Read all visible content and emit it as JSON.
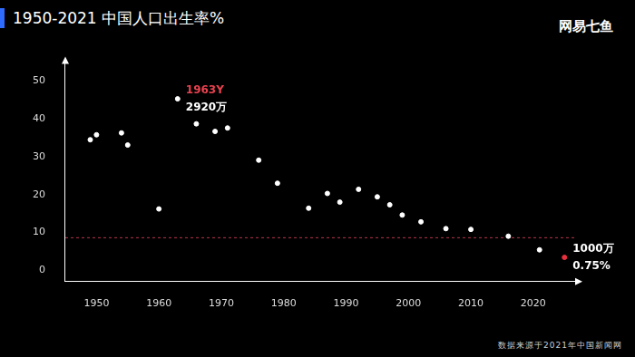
{
  "chart_data": {
    "type": "scatter",
    "title": "1950-2021 中国人口出生率%",
    "logo": "网易七鱼",
    "source": "数据来源于2021年中国新闻网",
    "x": [
      1949,
      1950,
      1954,
      1955,
      1960,
      1963,
      1966,
      1969,
      1971,
      1976,
      1979,
      1984,
      1987,
      1989,
      1992,
      1995,
      1997,
      1999,
      2002,
      2006,
      2010,
      2016,
      2021,
      2025
    ],
    "values": [
      34.5,
      35.8,
      36.3,
      33.1,
      16.2,
      45.3,
      38.7,
      36.7,
      37.6,
      29.1,
      23.0,
      16.4,
      20.3,
      18.0,
      21.4,
      19.4,
      17.3,
      14.6,
      12.8,
      11.0,
      10.8,
      9.0,
      5.4,
      3.4
    ],
    "colors": [
      "#ffffff",
      "#ffffff",
      "#ffffff",
      "#ffffff",
      "#ffffff",
      "#ffffff",
      "#ffffff",
      "#ffffff",
      "#ffffff",
      "#ffffff",
      "#ffffff",
      "#ffffff",
      "#ffffff",
      "#ffffff",
      "#ffffff",
      "#ffffff",
      "#ffffff",
      "#ffffff",
      "#ffffff",
      "#ffffff",
      "#ffffff",
      "#ffffff",
      "#ffffff",
      "#e8303f"
    ],
    "xlim": [
      1945,
      2027
    ],
    "xticks": [
      1950,
      1960,
      1970,
      1980,
      1990,
      2000,
      2010,
      2020
    ],
    "ylim": [
      -3,
      55
    ],
    "yticks": [
      0,
      10,
      20,
      30,
      40,
      50
    ],
    "grid": false,
    "reference_line": {
      "y": 8.6,
      "color": "#b8344a",
      "line_style": "dashed"
    },
    "annotations": [
      {
        "x": 1963,
        "texts": [
          "1963Y",
          "2920万"
        ],
        "colors": [
          "#e8414f",
          "#ffffff"
        ]
      },
      {
        "x": 2025,
        "texts": [
          "1000万",
          "0.75%"
        ],
        "colors": [
          "#ffffff",
          "#ffffff"
        ]
      }
    ]
  }
}
